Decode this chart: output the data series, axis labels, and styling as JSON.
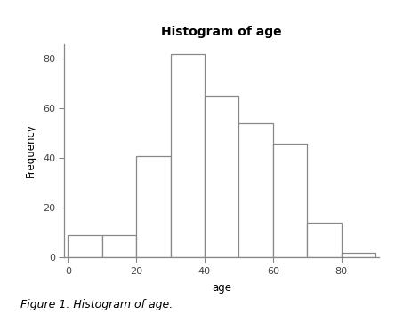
{
  "title": "Histogram of age",
  "xlabel": "age",
  "ylabel": "Frequency",
  "bin_edges": [
    0,
    10,
    20,
    30,
    40,
    50,
    60,
    70,
    80,
    90
  ],
  "frequencies": [
    9,
    9,
    41,
    82,
    65,
    54,
    46,
    14,
    2
  ],
  "bar_facecolor": "white",
  "bar_edgecolor": "#888888",
  "bar_linewidth": 0.9,
  "xlim": [
    -1,
    91
  ],
  "ylim": [
    0,
    86
  ],
  "xticks": [
    0,
    20,
    40,
    60,
    80
  ],
  "yticks": [
    0,
    20,
    40,
    60,
    80
  ],
  "title_fontsize": 10,
  "title_fontweight": "bold",
  "axis_label_fontsize": 8.5,
  "tick_fontsize": 8,
  "caption": "Figure 1. Histogram of age.",
  "caption_fontsize": 9,
  "background_color": "white",
  "spine_color": "#888888",
  "fig_width": 4.53,
  "fig_height": 3.54,
  "dpi": 100
}
